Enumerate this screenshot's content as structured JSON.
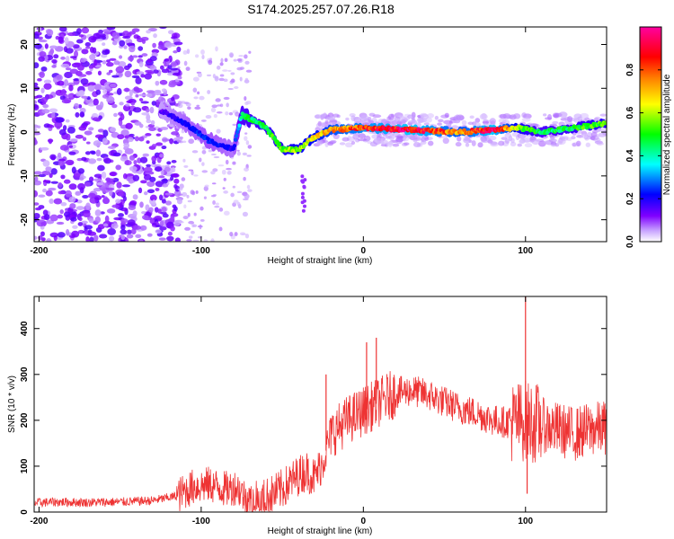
{
  "title": "S174.2025.257.07.26.R18",
  "chart_data": [
    {
      "type": "heatmap",
      "name": "spectrogram",
      "xlabel": "Height of straight line (km)",
      "ylabel": "Frequency (Hz)",
      "xlim": [
        -203,
        150
      ],
      "ylim": [
        -25,
        24
      ],
      "x_ticks": [
        -200,
        -100,
        0,
        100
      ],
      "x_tick_labels": [
        "-200",
        "-100",
        "0",
        "100"
      ],
      "y_ticks": [
        -20,
        -10,
        0,
        10,
        20
      ],
      "y_tick_labels": [
        "-20",
        "-10",
        "0",
        "10",
        "20"
      ],
      "colorbar": {
        "label": "Normalized spectral amplitude",
        "range": [
          0,
          1
        ],
        "ticks": [
          0.0,
          0.2,
          0.4,
          0.6,
          0.8
        ],
        "tick_labels": [
          "0.0",
          "0.2",
          "0.4",
          "0.6",
          "0.8"
        ],
        "colors": [
          "#ffffff",
          "#7f00ff",
          "#0000ff",
          "#00ffff",
          "#00ff00",
          "#ffff00",
          "#ff8000",
          "#ff0000",
          "#ff00a0"
        ]
      },
      "ridge": [
        {
          "x": -125,
          "freq": 5,
          "amp": 0.15
        },
        {
          "x": -110,
          "freq": 2,
          "amp": 0.22
        },
        {
          "x": -95,
          "freq": -2,
          "amp": 0.25
        },
        {
          "x": -80,
          "freq": -4,
          "amp": 0.2
        },
        {
          "x": -75,
          "freq": 4,
          "amp": 0.45
        },
        {
          "x": -60,
          "freq": 1,
          "amp": 0.5
        },
        {
          "x": -50,
          "freq": -4,
          "amp": 0.55
        },
        {
          "x": -40,
          "freq": -4,
          "amp": 0.6
        },
        {
          "x": -30,
          "freq": -1,
          "amp": 0.65
        },
        {
          "x": -20,
          "freq": 0.5,
          "amp": 0.75
        },
        {
          "x": 0,
          "freq": 1,
          "amp": 0.85
        },
        {
          "x": 30,
          "freq": 0.5,
          "amp": 0.95
        },
        {
          "x": 60,
          "freq": 0,
          "amp": 0.75
        },
        {
          "x": 80,
          "freq": 0.5,
          "amp": 0.95
        },
        {
          "x": 95,
          "freq": 1,
          "amp": 0.6
        },
        {
          "x": 110,
          "freq": 0,
          "amp": 0.45
        },
        {
          "x": 130,
          "freq": 1,
          "amp": 0.5
        },
        {
          "x": 150,
          "freq": 2,
          "amp": 0.55
        }
      ]
    },
    {
      "type": "line",
      "name": "snr",
      "xlabel": "Height of straight line (km)",
      "ylabel": "SNR (10 * v/v)",
      "xlim": [
        -203,
        150
      ],
      "ylim": [
        0,
        470
      ],
      "x_ticks": [
        -200,
        -100,
        0,
        100
      ],
      "x_tick_labels": [
        "-200",
        "-100",
        "0",
        "100"
      ],
      "y_ticks": [
        0,
        100,
        200,
        300,
        400
      ],
      "y_tick_labels": [
        "0",
        "100",
        "200",
        "300",
        "400"
      ],
      "color": "#ee3333",
      "series": [
        {
          "name": "SNR",
          "x": [
            -203,
            -190,
            -170,
            -150,
            -130,
            -115,
            -105,
            -95,
            -85,
            -78,
            -70,
            -60,
            -50,
            -40,
            -35,
            -30,
            -25,
            -20,
            -10,
            0,
            10,
            20,
            30,
            40,
            50,
            60,
            70,
            80,
            90,
            100,
            110,
            120,
            130,
            140,
            150
          ],
          "values": [
            20,
            22,
            21,
            22,
            25,
            35,
            55,
            60,
            50,
            55,
            20,
            30,
            50,
            80,
            90,
            75,
            110,
            170,
            200,
            220,
            240,
            260,
            265,
            255,
            240,
            225,
            215,
            200,
            195,
            200,
            190,
            180,
            170,
            180,
            185
          ]
        }
      ],
      "spikes": [
        {
          "x": -23,
          "y": 300
        },
        {
          "x": 2,
          "y": 370
        },
        {
          "x": 8,
          "y": 380
        },
        {
          "x": 100,
          "y": 470
        },
        {
          "x": 101,
          "y": 40
        }
      ]
    }
  ]
}
